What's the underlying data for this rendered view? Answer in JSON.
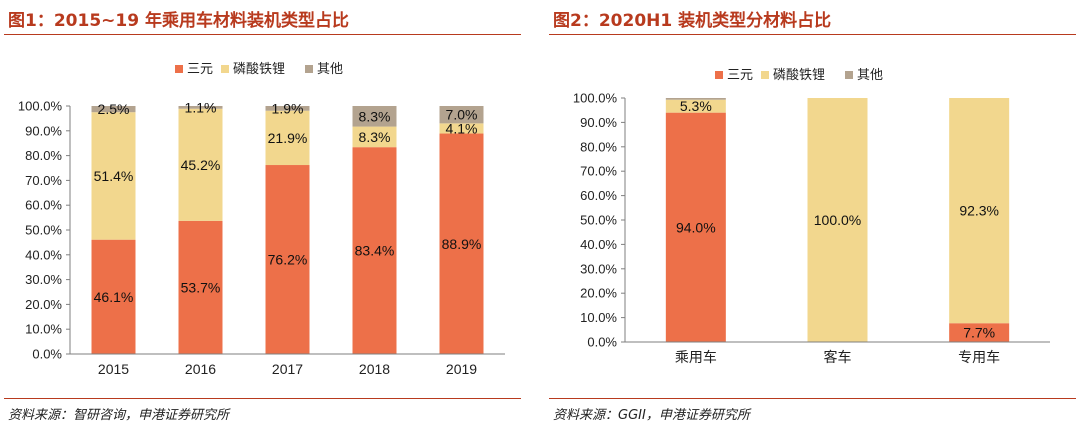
{
  "panels": [
    {
      "title": "图1：2015~19 年乘用车材料装机类型占比",
      "source": "资料来源：智研咨询，申港证券研究所",
      "chart_data": {
        "type": "bar",
        "stacked": true,
        "categories": [
          "2015",
          "2016",
          "2017",
          "2018",
          "2019"
        ],
        "series": [
          {
            "name": "三元",
            "values": [
              46.1,
              53.7,
              76.2,
              83.4,
              88.9
            ],
            "labels": [
              "46.1%",
              "53.7%",
              "76.2%",
              "83.4%",
              "88.9%"
            ],
            "color": "#ed7049"
          },
          {
            "name": "磷酸铁锂",
            "values": [
              51.4,
              45.2,
              21.9,
              8.3,
              4.1
            ],
            "labels": [
              "51.4%",
              "45.2%",
              "21.9%",
              "8.3%",
              "4.1%"
            ],
            "color": "#f2d78e"
          },
          {
            "name": "其他",
            "values": [
              2.5,
              1.1,
              1.9,
              8.3,
              7.0
            ],
            "labels": [
              "2.5%",
              "1.1%",
              "1.9%",
              "8.3%",
              "7.0%"
            ],
            "color": "#b3a38f"
          }
        ],
        "ylim": [
          0,
          100
        ],
        "yticks": [
          "0.0%",
          "10.0%",
          "20.0%",
          "30.0%",
          "40.0%",
          "50.0%",
          "60.0%",
          "70.0%",
          "80.0%",
          "90.0%",
          "100.0%"
        ],
        "legend": "top-center",
        "grid": false
      }
    },
    {
      "title": "图2：2020H1 装机类型分材料占比",
      "source": "资料来源：GGII，申港证券研究所",
      "chart_data": {
        "type": "bar",
        "stacked": true,
        "categories": [
          "乘用车",
          "客车",
          "专用车"
        ],
        "series": [
          {
            "name": "三元",
            "values": [
              94.0,
              0,
              7.7
            ],
            "labels": [
              "94.0%",
              "",
              "7.7%"
            ],
            "color": "#ed7049"
          },
          {
            "name": "磷酸铁锂",
            "values": [
              5.3,
              100.0,
              92.3
            ],
            "labels": [
              "5.3%",
              "100.0%",
              "92.3%"
            ],
            "color": "#f2d78e"
          },
          {
            "name": "其他",
            "values": [
              0.7,
              0,
              0
            ],
            "labels": [
              "",
              "",
              ""
            ],
            "color": "#b3a38f"
          }
        ],
        "ylim": [
          0,
          100
        ],
        "yticks": [
          "0.0%",
          "10.0%",
          "20.0%",
          "30.0%",
          "40.0%",
          "50.0%",
          "60.0%",
          "70.0%",
          "80.0%",
          "90.0%",
          "100.0%"
        ],
        "legend": "top-center",
        "grid": false
      }
    }
  ]
}
